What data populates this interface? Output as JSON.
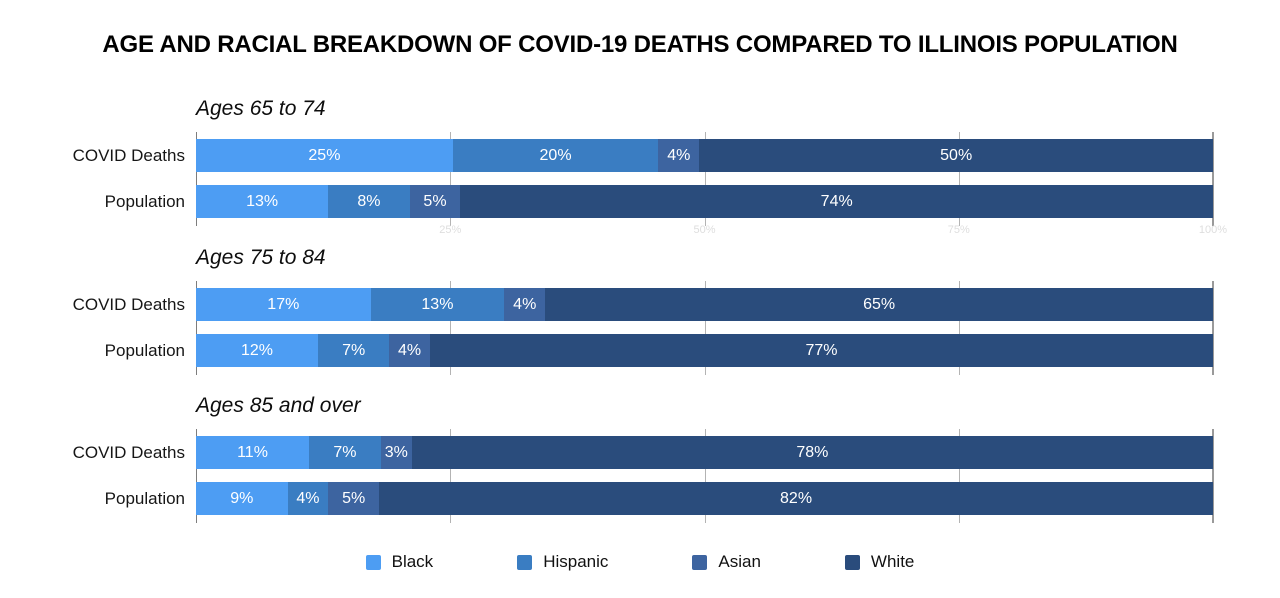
{
  "chart_data": {
    "type": "bar",
    "variant": "horizontal-stacked-grouped",
    "title": "AGE AND RACIAL BREAKDOWN OF COVID-19 DEATHS COMPARED TO ILLINOIS POPULATION",
    "unit": "%",
    "xlim": [
      0,
      100
    ],
    "gridlines_percent": [
      0,
      25,
      50,
      75,
      100
    ],
    "axis_tick_labels": [
      "25%",
      "50%",
      "75%",
      "100%"
    ],
    "axis_tick_label_color": "#dedede",
    "legend_position": "bottom",
    "series": [
      {
        "name": "Black",
        "color": "#4D9DF3"
      },
      {
        "name": "Hispanic",
        "color": "#3A7DC2"
      },
      {
        "name": "Asian",
        "color": "#3D64A0"
      },
      {
        "name": "White",
        "color": "#2A4C7C"
      }
    ],
    "groups": [
      {
        "label": "Ages 65 to 74",
        "rows": [
          {
            "label": "COVID Deaths",
            "values": [
              25,
              20,
              4,
              50
            ]
          },
          {
            "label": "Population",
            "values": [
              13,
              8,
              5,
              74
            ]
          }
        ]
      },
      {
        "label": "Ages 75 to 84",
        "rows": [
          {
            "label": "COVID Deaths",
            "values": [
              17,
              13,
              4,
              65
            ]
          },
          {
            "label": "Population",
            "values": [
              12,
              7,
              4,
              77
            ]
          }
        ]
      },
      {
        "label": "Ages 85 and over",
        "rows": [
          {
            "label": "COVID Deaths",
            "values": [
              11,
              7,
              3,
              78
            ]
          },
          {
            "label": "Population",
            "values": [
              9,
              4,
              5,
              82
            ]
          }
        ]
      }
    ]
  }
}
